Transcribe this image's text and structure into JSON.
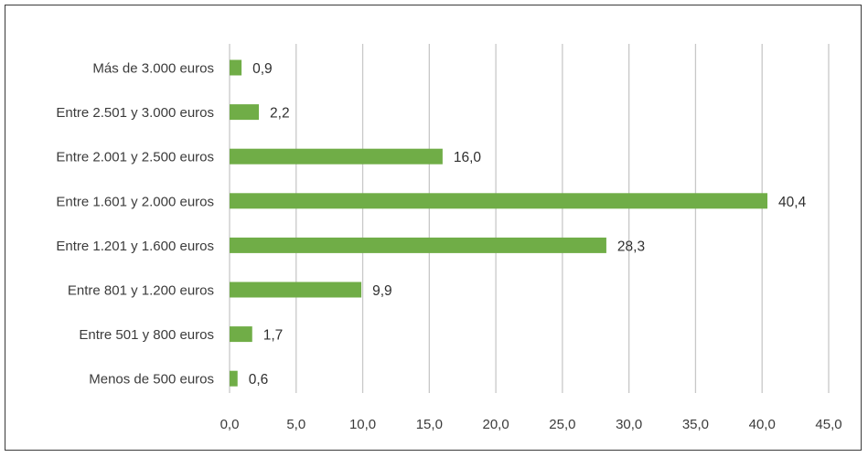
{
  "chart_data": {
    "type": "bar",
    "orientation": "horizontal",
    "categories": [
      "Más de 3.000 euros",
      "Entre 2.501 y 3.000 euros",
      "Entre 2.001 y 2.500 euros",
      "Entre 1.601 y 2.000 euros",
      "Entre 1.201 y 1.600 euros",
      "Entre 801 y 1.200 euros",
      "Entre 501 y 800 euros",
      "Menos de 500 euros"
    ],
    "values": [
      0.9,
      2.2,
      16.0,
      40.4,
      28.3,
      9.9,
      1.7,
      0.6
    ],
    "value_labels": [
      "0,9",
      "2,2",
      "16,0",
      "40,4",
      "28,3",
      "9,9",
      "1,7",
      "0,6"
    ],
    "xlim": [
      0,
      45
    ],
    "xticks": [
      0,
      5,
      10,
      15,
      20,
      25,
      30,
      35,
      40,
      45
    ],
    "xtick_labels": [
      "0,0",
      "5,0",
      "10,0",
      "15,0",
      "20,0",
      "25,0",
      "30,0",
      "35,0",
      "40,0",
      "45,0"
    ],
    "title": "",
    "xlabel": "",
    "ylabel": "",
    "grid": "vertical",
    "legend": "none",
    "colors": {
      "bar": "#70ad47",
      "grid": "#c8c8c8",
      "frame": "#3a3a3a"
    }
  }
}
